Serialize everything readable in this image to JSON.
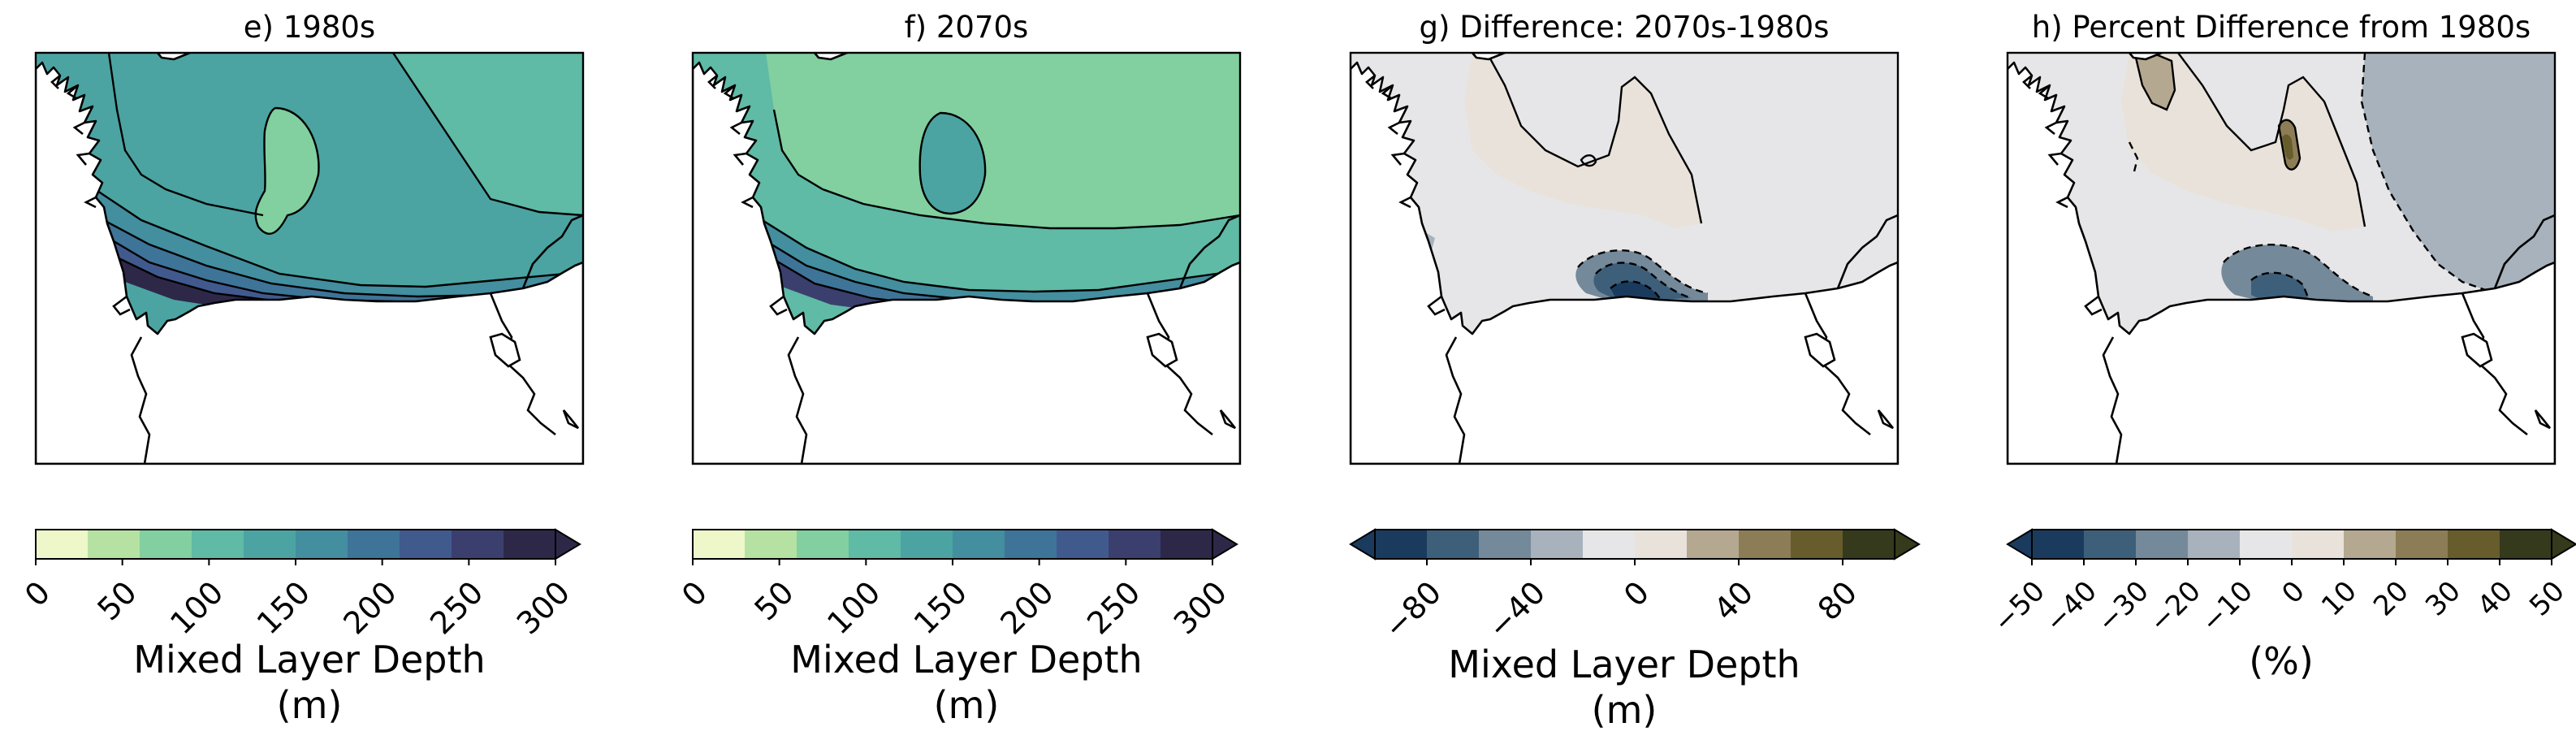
{
  "chart_data": [
    {
      "type": "heatmap",
      "title": "e) 1980s",
      "colorbar": {
        "ticks": [
          "0",
          "50",
          "100",
          "150",
          "200",
          "250",
          "300"
        ],
        "label_lines": [
          "Mixed Layer Depth",
          "(m)"
        ],
        "extend": "max",
        "colors": [
          "#eef7c9",
          "#b5e2a3",
          "#82cfa0",
          "#5fbaa6",
          "#4ba4a2",
          "#438e9f",
          "#3e7498",
          "#415a8e",
          "#3b3f6e",
          "#2e2848"
        ]
      },
      "levels": [
        {
          "name": "basin-level-100-125",
          "value": 110,
          "color": "#4ba4a2"
        },
        {
          "name": "core-level-125-150",
          "value": 130,
          "color": "#5fbaa6"
        },
        {
          "name": "center-level-75-100",
          "value": 80,
          "color": "#82cfa0"
        },
        {
          "name": "shelf-level-150-175",
          "value": 160,
          "color": "#438e9f"
        },
        {
          "name": "shelf-level-175-200",
          "value": 185,
          "color": "#3e7498"
        },
        {
          "name": "shelf-level-200-250",
          "value": 220,
          "color": "#415a8e"
        },
        {
          "name": "shelf-level-250-300",
          "value": 270,
          "color": "#2e2848"
        }
      ]
    },
    {
      "type": "heatmap",
      "title": "f) 2070s",
      "colorbar": {
        "ticks": [
          "0",
          "50",
          "100",
          "150",
          "200",
          "250",
          "300"
        ],
        "label_lines": [
          "Mixed Layer Depth",
          "(m)"
        ],
        "extend": "max",
        "colors": [
          "#eef7c9",
          "#b5e2a3",
          "#82cfa0",
          "#5fbaa6",
          "#4ba4a2",
          "#438e9f",
          "#3e7498",
          "#415a8e",
          "#3b3f6e",
          "#2e2848"
        ]
      },
      "levels": [
        {
          "name": "basin-level-100-125",
          "value": 110,
          "color": "#5fbaa6"
        },
        {
          "name": "center-level-75-100",
          "value": 80,
          "color": "#82cfa0"
        },
        {
          "name": "shelf-level-150-175",
          "value": 160,
          "color": "#4ba4a2"
        },
        {
          "name": "shelf-level-175-200",
          "value": 185,
          "color": "#438e9f"
        },
        {
          "name": "shelf-level-200-250",
          "value": 220,
          "color": "#3e7498"
        },
        {
          "name": "shelf-level-250-300",
          "value": 250,
          "color": "#3b3f6e"
        }
      ]
    },
    {
      "type": "heatmap",
      "title": "g) Difference: 2070s-1980s",
      "colorbar": {
        "ticks": [
          "−80",
          "−40",
          "0",
          "40",
          "80"
        ],
        "label_lines": [
          "Mixed Layer Depth",
          "(m)"
        ],
        "extend": "both",
        "colors": [
          "#1b3b5e",
          "#3e5f7a",
          "#74899a",
          "#a8b2bc",
          "#e6e6e8",
          "#e9e2da",
          "#b4a890",
          "#8c7d56",
          "#675c2c",
          "#363a1c"
        ]
      },
      "levels": [
        {
          "name": "background-level-0",
          "value": 0,
          "color": "#e6e6e8"
        },
        {
          "name": "positive-level-0-20",
          "value": 10,
          "color": "#e9e2da"
        },
        {
          "name": "negative-level-20",
          "value": -20,
          "color": "#a8b2bc"
        },
        {
          "name": "negative-level-40",
          "value": -40,
          "color": "#74899a"
        },
        {
          "name": "negative-level-60",
          "value": -60,
          "color": "#3e5f7a"
        },
        {
          "name": "negative-level-80",
          "value": -80,
          "color": "#1b3b5e"
        }
      ]
    },
    {
      "type": "heatmap",
      "title": "h) Percent Difference from 1980s",
      "colorbar": {
        "ticks": [
          "−50",
          "−40",
          "−30",
          "−20",
          "−10",
          "0",
          "10",
          "20",
          "30",
          "40",
          "50"
        ],
        "label_lines": [
          "(%)"
        ],
        "extend": "both",
        "colors": [
          "#1b3b5e",
          "#3e5f7a",
          "#74899a",
          "#a8b2bc",
          "#e6e6e8",
          "#e9e2da",
          "#b4a890",
          "#8c7d56",
          "#675c2c",
          "#363a1c"
        ]
      },
      "levels": [
        {
          "name": "background-level-0",
          "value": 0,
          "color": "#e6e6e8"
        },
        {
          "name": "negative-level-10",
          "value": -10,
          "color": "#a8b2bc"
        },
        {
          "name": "positive-level-0-10",
          "value": 5,
          "color": "#e9e2da"
        },
        {
          "name": "positive-level-20",
          "value": 20,
          "color": "#b4a890"
        },
        {
          "name": "positive-level-30",
          "value": 30,
          "color": "#8c7d56"
        },
        {
          "name": "positive-level-40",
          "value": 40,
          "color": "#675c2c"
        },
        {
          "name": "negative-level-20",
          "value": -20,
          "color": "#74899a"
        },
        {
          "name": "negative-level-30",
          "value": -30,
          "color": "#3e5f7a"
        }
      ]
    }
  ]
}
